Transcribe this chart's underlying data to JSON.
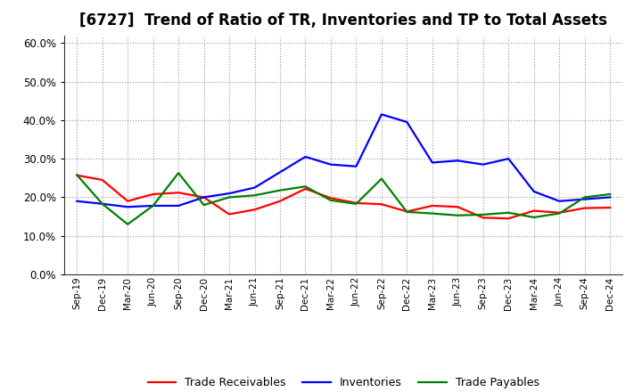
{
  "title": "[6727]  Trend of Ratio of TR, Inventories and TP to Total Assets",
  "labels": [
    "Sep-19",
    "Dec-19",
    "Mar-20",
    "Jun-20",
    "Sep-20",
    "Dec-20",
    "Mar-21",
    "Jun-21",
    "Sep-21",
    "Dec-21",
    "Mar-22",
    "Jun-22",
    "Sep-22",
    "Dec-22",
    "Mar-23",
    "Jun-23",
    "Sep-23",
    "Dec-23",
    "Mar-24",
    "Jun-24",
    "Sep-24",
    "Dec-24"
  ],
  "trade_receivables": [
    0.257,
    0.245,
    0.19,
    0.208,
    0.212,
    0.2,
    0.156,
    0.168,
    0.19,
    0.222,
    0.198,
    0.185,
    0.182,
    0.163,
    0.178,
    0.175,
    0.147,
    0.145,
    0.165,
    0.16,
    0.172,
    0.173
  ],
  "inventories": [
    0.19,
    0.183,
    0.175,
    0.178,
    0.178,
    0.2,
    0.21,
    0.225,
    0.265,
    0.305,
    0.285,
    0.28,
    0.415,
    0.395,
    0.29,
    0.295,
    0.285,
    0.3,
    0.215,
    0.19,
    0.195,
    0.2
  ],
  "trade_payables": [
    0.258,
    0.183,
    0.13,
    0.178,
    0.263,
    0.18,
    0.2,
    0.205,
    0.218,
    0.228,
    0.192,
    0.183,
    0.248,
    0.162,
    0.158,
    0.153,
    0.155,
    0.16,
    0.148,
    0.158,
    0.2,
    0.208
  ],
  "tr_color": "#ff0000",
  "inv_color": "#0000ff",
  "tp_color": "#008000",
  "ylim": [
    0.0,
    0.62
  ],
  "yticks": [
    0.0,
    0.1,
    0.2,
    0.3,
    0.4,
    0.5,
    0.6
  ],
  "legend_labels": [
    "Trade Receivables",
    "Inventories",
    "Trade Payables"
  ],
  "bg_color": "#ffffff",
  "plot_bg_color": "#ffffff",
  "grid_color": "#999999",
  "title_fontsize": 12,
  "line_width": 1.6
}
